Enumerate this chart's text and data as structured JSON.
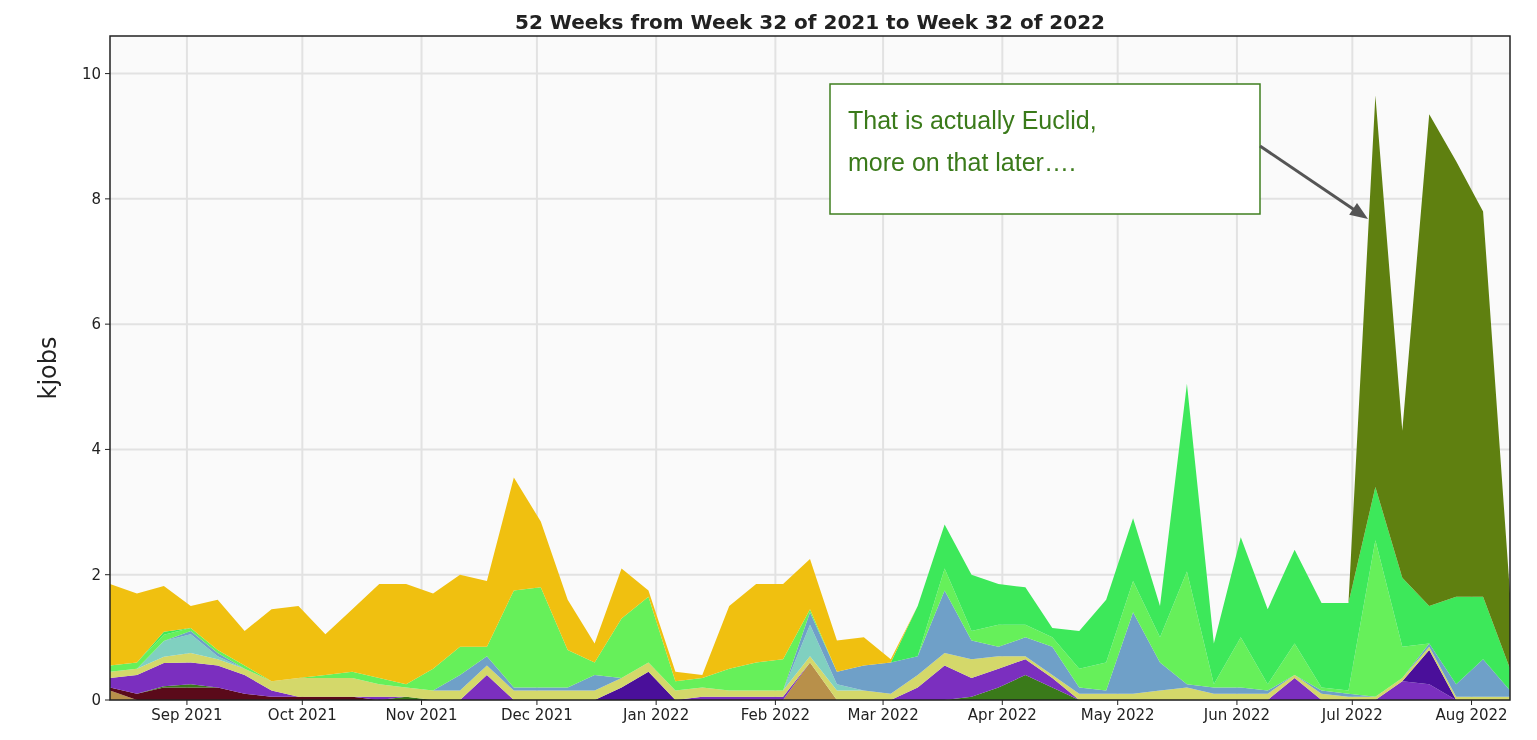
{
  "chart_data": {
    "type": "area",
    "stacked": true,
    "title": "52 Weeks from Week 32 of 2021 to Week 32 of 2022",
    "ylabel": "kjobs",
    "grid": true,
    "x": [
      "2021-08-12",
      "2021-08-19",
      "2021-08-26",
      "2021-09-02",
      "2021-09-09",
      "2021-09-16",
      "2021-09-23",
      "2021-09-30",
      "2021-10-07",
      "2021-10-14",
      "2021-10-21",
      "2021-10-28",
      "2021-11-04",
      "2021-11-11",
      "2021-11-18",
      "2021-11-25",
      "2021-12-02",
      "2021-12-09",
      "2021-12-16",
      "2021-12-23",
      "2021-12-30",
      "2022-01-06",
      "2022-01-13",
      "2022-01-20",
      "2022-01-27",
      "2022-02-03",
      "2022-02-10",
      "2022-02-17",
      "2022-02-24",
      "2022-03-03",
      "2022-03-10",
      "2022-03-17",
      "2022-03-24",
      "2022-03-31",
      "2022-04-07",
      "2022-04-14",
      "2022-04-21",
      "2022-04-28",
      "2022-05-05",
      "2022-05-12",
      "2022-05-19",
      "2022-05-26",
      "2022-06-02",
      "2022-06-09",
      "2022-06-16",
      "2022-06-23",
      "2022-06-30",
      "2022-07-07",
      "2022-07-14",
      "2022-07-21",
      "2022-07-28",
      "2022-08-04",
      "2022-08-11"
    ],
    "xlim": [
      "2021-08-12",
      "2022-08-11"
    ],
    "xticks": [
      {
        "value": "2021-09-01",
        "label": "Sep 2021"
      },
      {
        "value": "2021-10-01",
        "label": "Oct 2021"
      },
      {
        "value": "2021-11-01",
        "label": "Nov 2021"
      },
      {
        "value": "2021-12-01",
        "label": "Dec 2021"
      },
      {
        "value": "2022-01-01",
        "label": "Jan 2022"
      },
      {
        "value": "2022-02-01",
        "label": "Feb 2022"
      },
      {
        "value": "2022-03-01",
        "label": "Mar 2022"
      },
      {
        "value": "2022-04-01",
        "label": "Apr 2022"
      },
      {
        "value": "2022-05-01",
        "label": "May 2022"
      },
      {
        "value": "2022-06-01",
        "label": "Jun 2022"
      },
      {
        "value": "2022-07-01",
        "label": "Jul 2022"
      },
      {
        "value": "2022-08-01",
        "label": "Aug 2022"
      }
    ],
    "ylim": [
      0,
      10.6
    ],
    "yticks": [
      0,
      2,
      4,
      6,
      8,
      10
    ],
    "series": [
      {
        "color": "#b8904a",
        "values": [
          0.15,
          0,
          null,
          null,
          null,
          null,
          null,
          null,
          null,
          null,
          null,
          null,
          null,
          null,
          null,
          null,
          null,
          null,
          null,
          null,
          null,
          null,
          null,
          null,
          null,
          0,
          0.6,
          0,
          null,
          null,
          null,
          null,
          null,
          null,
          null,
          null,
          null,
          null,
          null,
          null,
          null,
          null,
          null,
          null,
          null,
          null,
          null,
          null,
          null,
          null,
          null,
          null,
          null
        ]
      },
      {
        "color": "#5a0a1a",
        "values": [
          0.05,
          0.1,
          0.2,
          0.2,
          0.2,
          0.1,
          0.05,
          0.05,
          0.05,
          0.05,
          0,
          null,
          null,
          null,
          null,
          null,
          null,
          null,
          null,
          null,
          null,
          null,
          null,
          null,
          null,
          null,
          null,
          null,
          null,
          null,
          null,
          null,
          null,
          null,
          null,
          null,
          null,
          null,
          null,
          null,
          null,
          null,
          null,
          null,
          null,
          null,
          null,
          null,
          null,
          null,
          null,
          null,
          null
        ]
      },
      {
        "color": "#3a7a1a",
        "values": [
          null,
          0,
          0.02,
          0.05,
          0,
          null,
          null,
          null,
          null,
          null,
          0,
          0.05,
          0,
          null,
          null,
          null,
          null,
          null,
          null,
          null,
          null,
          null,
          null,
          null,
          null,
          null,
          null,
          null,
          null,
          null,
          null,
          0,
          0.05,
          0.2,
          0.4,
          0.2,
          0,
          null,
          null,
          null,
          null,
          null,
          null,
          null,
          null,
          null,
          null,
          null,
          null,
          null,
          null,
          null,
          null
        ]
      },
      {
        "color": "#7b2fbf",
        "values": [
          0.15,
          0.3,
          0.37,
          0.35,
          0.35,
          0.3,
          0.1,
          0,
          null,
          0,
          0.05,
          0,
          null,
          0,
          0.4,
          0,
          null,
          null,
          null,
          null,
          null,
          0,
          0.05,
          0.05,
          0.05,
          0.05,
          0,
          null,
          null,
          0,
          0.2,
          0.55,
          0.3,
          0.3,
          0.25,
          0.15,
          0,
          null,
          null,
          null,
          null,
          null,
          null,
          0,
          0.35,
          0,
          null,
          0,
          0.3,
          0.25,
          0,
          null,
          null
        ]
      },
      {
        "color": "#4a0f9a",
        "values": [
          null,
          null,
          null,
          null,
          null,
          null,
          null,
          null,
          null,
          null,
          null,
          null,
          null,
          null,
          null,
          null,
          null,
          null,
          0,
          0.2,
          0.45,
          0,
          null,
          null,
          null,
          null,
          null,
          null,
          null,
          null,
          null,
          null,
          null,
          null,
          null,
          null,
          null,
          null,
          null,
          null,
          null,
          null,
          null,
          null,
          null,
          null,
          null,
          null,
          0,
          0.55,
          0,
          null,
          null
        ]
      },
      {
        "color": "#d4d86a",
        "values": [
          0.1,
          0.1,
          0.1,
          0.15,
          0.1,
          0.1,
          0.15,
          0.3,
          0.3,
          0.3,
          0.2,
          0.15,
          0.15,
          0.15,
          0.15,
          0.15,
          0.15,
          0.15,
          0.15,
          0.15,
          0.15,
          0.15,
          0.15,
          0.1,
          0.1,
          0.1,
          0.1,
          0.15,
          0.15,
          0.1,
          0.2,
          0.2,
          0.3,
          0.2,
          0.05,
          0.05,
          0.1,
          0.1,
          0.1,
          0.15,
          0.2,
          0.1,
          0.1,
          0.1,
          0.05,
          0.1,
          0.05,
          0.05,
          0.05,
          0.05,
          0.05,
          0.05,
          0.05
        ]
      },
      {
        "color": "#80d0c0",
        "values": [
          null,
          0,
          0.25,
          0.3,
          0.05,
          0,
          null,
          null,
          null,
          null,
          null,
          null,
          null,
          null,
          null,
          null,
          null,
          null,
          null,
          null,
          null,
          null,
          null,
          null,
          null,
          0,
          0.5,
          0.1,
          0,
          null,
          null,
          null,
          null,
          null,
          null,
          null,
          null,
          null,
          null,
          null,
          null,
          null,
          null,
          null,
          null,
          null,
          null,
          null,
          null,
          null,
          null,
          null,
          null
        ]
      },
      {
        "color": "#6fa0c8",
        "values": [
          null,
          null,
          0,
          0.05,
          0.05,
          0,
          null,
          null,
          null,
          null,
          null,
          null,
          0,
          0.25,
          0.15,
          0.05,
          0.05,
          0.05,
          0.25,
          0,
          null,
          null,
          null,
          null,
          null,
          0,
          0.2,
          0.2,
          0.4,
          0.5,
          0.3,
          1.0,
          0.3,
          0.15,
          0.3,
          0.45,
          0.1,
          0.05,
          1.3,
          0.45,
          0.05,
          0.1,
          0.1,
          0.05,
          0,
          0.05,
          0.05,
          0,
          0,
          0.05,
          0.2,
          0.6,
          0.1
        ]
      },
      {
        "color": "#66f05a",
        "values": [
          0.1,
          0.1,
          0.1,
          0.05,
          0.05,
          0.05,
          0,
          0,
          0.05,
          0.1,
          0.1,
          0.05,
          0.35,
          0.45,
          0.15,
          1.55,
          1.6,
          0.6,
          0.2,
          0.95,
          1.05,
          0.15,
          0.15,
          0.35,
          0.45,
          0.5,
          0.05,
          0,
          null,
          null,
          0,
          0.35,
          0.15,
          0.35,
          0.2,
          0.15,
          0.3,
          0.45,
          0.5,
          0.4,
          1.8,
          0.05,
          0.8,
          0.1,
          0.5,
          0.05,
          0.05,
          2.5,
          0.5,
          0,
          null,
          null,
          null
        ]
      },
      {
        "color": "#3de85a",
        "values": [
          null,
          0,
          0.05,
          0,
          null,
          null,
          null,
          null,
          null,
          null,
          null,
          null,
          null,
          null,
          null,
          null,
          null,
          null,
          null,
          null,
          null,
          null,
          null,
          null,
          null,
          null,
          null,
          null,
          null,
          0,
          0.8,
          0.7,
          0.9,
          0.65,
          0.6,
          0.15,
          0.6,
          1.0,
          1.0,
          0.5,
          3.0,
          0.65,
          1.6,
          1.2,
          1.5,
          1.35,
          1.4,
          0.85,
          1.1,
          0.6,
          1.4,
          1.0,
          0.35
        ]
      },
      {
        "color": "#5f8010",
        "values": [
          null,
          null,
          null,
          null,
          null,
          null,
          null,
          null,
          null,
          null,
          null,
          null,
          null,
          null,
          null,
          null,
          null,
          null,
          null,
          null,
          null,
          null,
          null,
          null,
          null,
          null,
          null,
          null,
          null,
          null,
          null,
          null,
          null,
          null,
          null,
          null,
          null,
          null,
          null,
          null,
          null,
          null,
          null,
          null,
          null,
          null,
          0,
          6.25,
          2.35,
          7.85,
          6.95,
          6.15,
          1.2
        ]
      },
      {
        "color": "#f0c010",
        "values": [
          1.3,
          1.1,
          0.73,
          0.35,
          0.8,
          0.55,
          1.15,
          1.15,
          0.65,
          1.0,
          1.5,
          1.6,
          1.2,
          1.15,
          1.05,
          1.8,
          1.05,
          0.8,
          0.3,
          0.8,
          0.1,
          0.15,
          0.05,
          1.0,
          1.25,
          1.2,
          0.8,
          0.5,
          0.45,
          0.05,
          0,
          null,
          null,
          null,
          null,
          null,
          null,
          null,
          null,
          null,
          null,
          null,
          null,
          null,
          null,
          null,
          null,
          null,
          null,
          null,
          null,
          null,
          null
        ]
      }
    ],
    "annotations": [
      "That is actually Euclid,\nmore on that later…."
    ]
  }
}
